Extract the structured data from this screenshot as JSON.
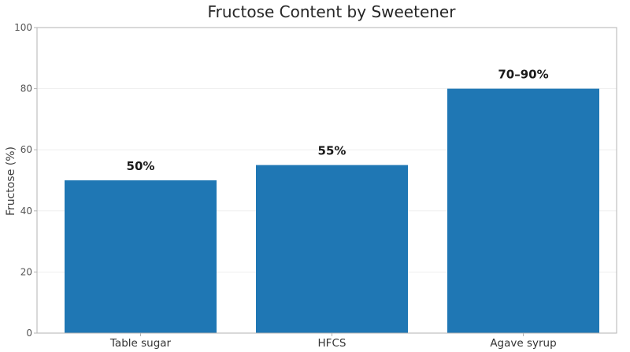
{
  "chart_data": {
    "type": "bar",
    "title": "Fructose Content by Sweetener",
    "ylabel": "Fructose (%)",
    "categories": [
      "Table sugar",
      "HFCS",
      "Agave syrup"
    ],
    "values": [
      50,
      55,
      80
    ],
    "data_labels": [
      "50%",
      "55%",
      "70–90%"
    ],
    "ylim": [
      0,
      100
    ],
    "yticks": [
      0,
      20,
      40,
      60,
      80,
      100
    ],
    "grid": true,
    "bar_color": "#1f77b4"
  }
}
